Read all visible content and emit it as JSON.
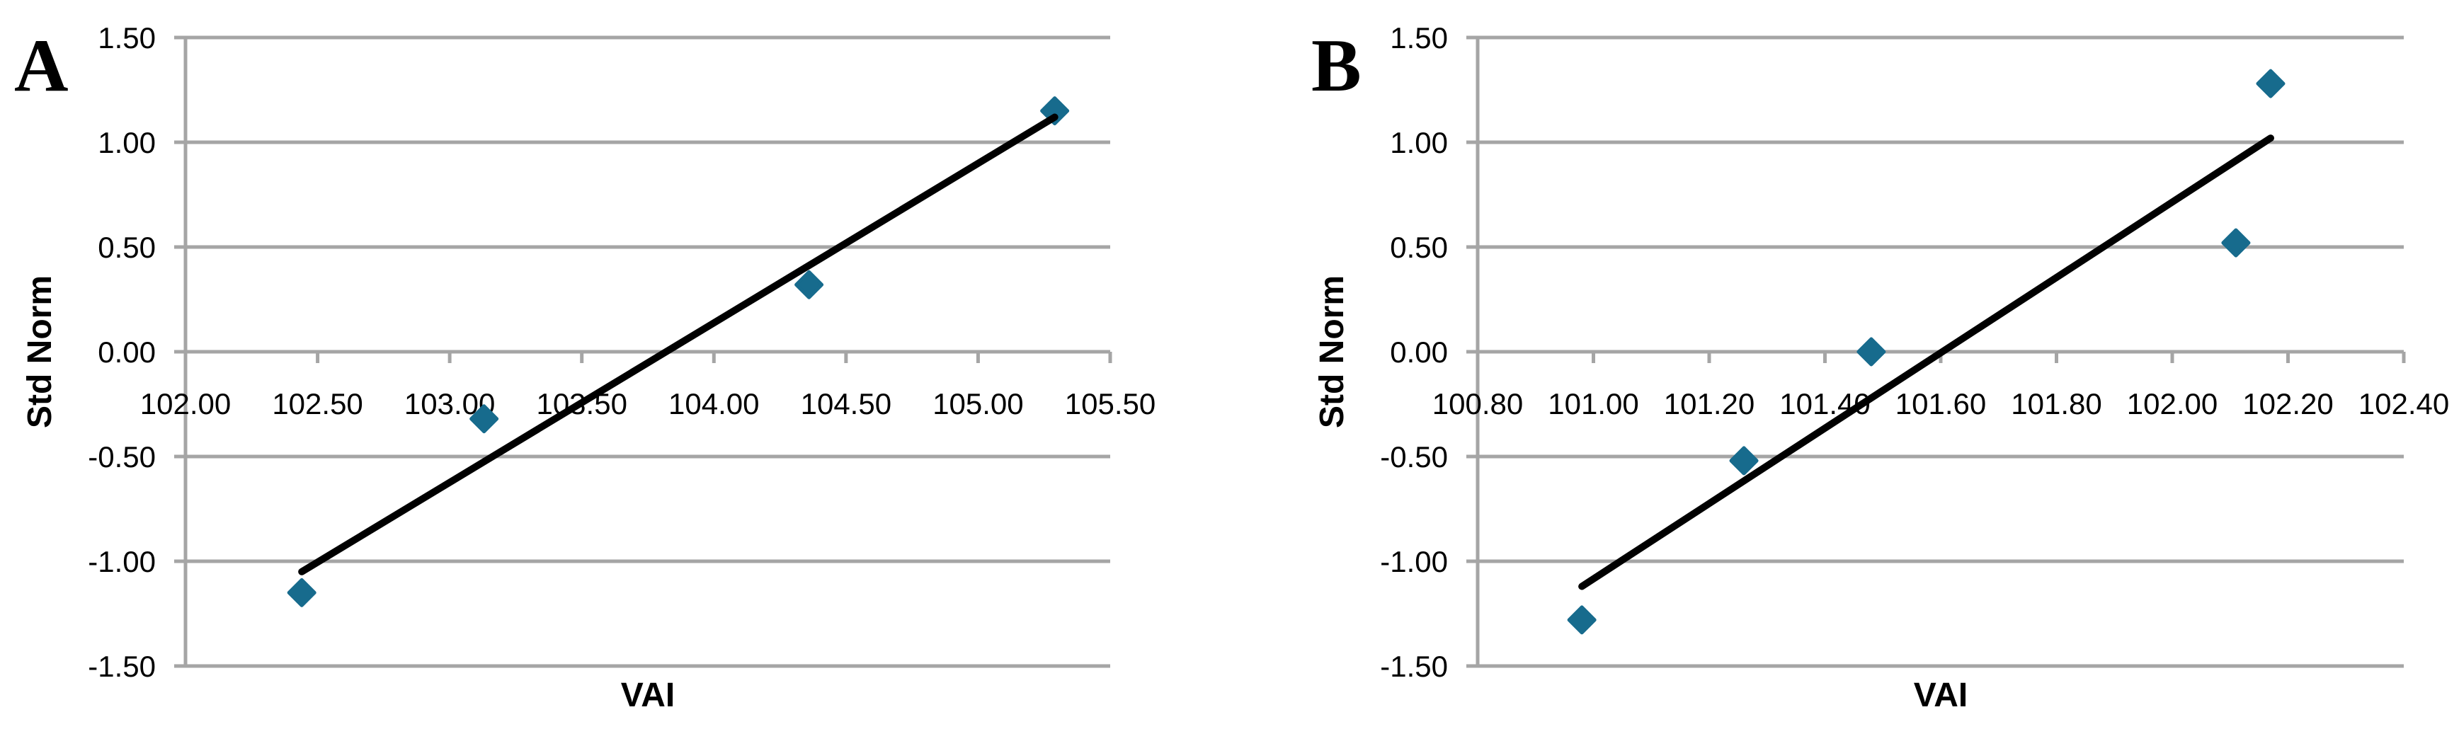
{
  "figure": {
    "description": "Two-panel normal probability scatter plots of Std Norm versus VAI",
    "background_color": "#FFFFFF"
  },
  "theme": {
    "grid_color": "#A5A5A5",
    "axis_color": "#A5A5A5",
    "trendline_color": "#000000",
    "marker_color": "#176B8D",
    "text_color": "#000000"
  },
  "chart_data": [
    {
      "type": "scatter",
      "panel_label": "A",
      "title": "",
      "xlabel": "VAI",
      "ylabel": "Std Norm",
      "xlim": [
        102.0,
        105.5
      ],
      "ylim": [
        -1.5,
        1.5
      ],
      "grid": "horizontal-only",
      "legend": "none",
      "marker_shape": "diamond",
      "x_tick_values": [
        102.0,
        102.5,
        103.0,
        103.5,
        104.0,
        104.5,
        105.0,
        105.5
      ],
      "x_tick_labels": [
        "102.00",
        "102.50",
        "103.00",
        "103.50",
        "104.00",
        "104.50",
        "105.00",
        "105.50"
      ],
      "y_tick_values": [
        1.5,
        1.0,
        0.5,
        0.0,
        -0.5,
        -1.0,
        -1.5
      ],
      "y_tick_labels": [
        "1.50",
        "1.00",
        "0.50",
        "0.00",
        "-0.50",
        "-1.00",
        "-1.50"
      ],
      "points": [
        {
          "x": 102.44,
          "y": -1.15
        },
        {
          "x": 103.13,
          "y": -0.32
        },
        {
          "x": 104.36,
          "y": 0.32
        },
        {
          "x": 105.29,
          "y": 1.15
        }
      ],
      "trendline": {
        "type": "linear",
        "x1": 102.44,
        "y1": -1.05,
        "x2": 105.29,
        "y2": 1.12
      }
    },
    {
      "type": "scatter",
      "panel_label": "B",
      "title": "",
      "xlabel": "VAI",
      "ylabel": "Std Norm",
      "xlim": [
        100.8,
        102.4
      ],
      "ylim": [
        -1.5,
        1.5
      ],
      "grid": "horizontal-only",
      "legend": "none",
      "marker_shape": "diamond",
      "x_tick_values": [
        100.8,
        101.0,
        101.2,
        101.4,
        101.6,
        101.8,
        102.0,
        102.2,
        102.4
      ],
      "x_tick_labels": [
        "100.80",
        "101.00",
        "101.20",
        "101.40",
        "101.60",
        "101.80",
        "102.00",
        "102.20",
        "102.40"
      ],
      "y_tick_values": [
        1.5,
        1.0,
        0.5,
        0.0,
        -0.5,
        -1.0,
        -1.5
      ],
      "y_tick_labels": [
        "1.50",
        "1.00",
        "0.50",
        "0.00",
        "-0.50",
        "-1.00",
        "-1.50"
      ],
      "points": [
        {
          "x": 100.98,
          "y": -1.28
        },
        {
          "x": 101.26,
          "y": -0.52
        },
        {
          "x": 101.48,
          "y": 0.0
        },
        {
          "x": 102.11,
          "y": 0.52
        },
        {
          "x": 102.17,
          "y": 1.28
        }
      ],
      "trendline": {
        "type": "linear",
        "x1": 100.98,
        "y1": -1.12,
        "x2": 102.17,
        "y2": 1.02
      }
    }
  ]
}
